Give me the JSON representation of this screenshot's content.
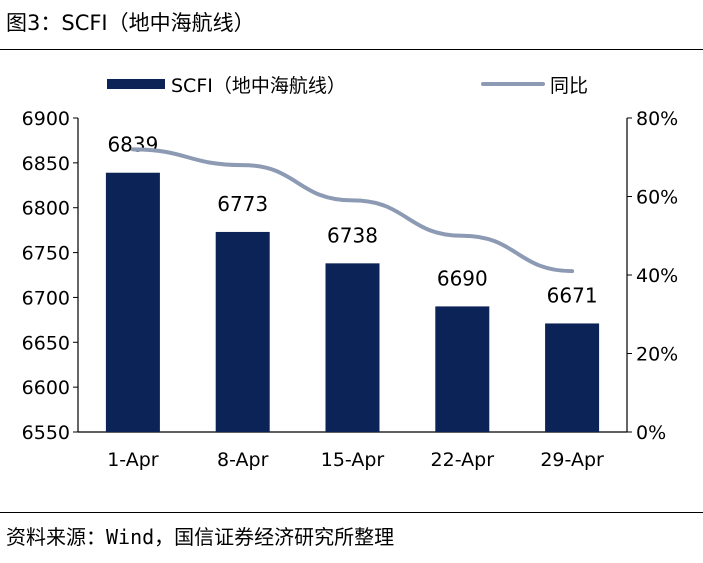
{
  "figure": {
    "title": "图3：SCFI（地中海航线）",
    "source": "资料来源：Wind，国信证券经济研究所整理"
  },
  "colors": {
    "bar": "#0c2357",
    "line": "#8c9ab4",
    "axis": "#000000"
  },
  "chart_data": {
    "type": "bar",
    "categories": [
      "1-Apr",
      "8-Apr",
      "15-Apr",
      "22-Apr",
      "29-Apr"
    ],
    "series": [
      {
        "name": "SCFI（地中海航线）",
        "type": "bar",
        "axis": "left",
        "values": [
          6839,
          6773,
          6738,
          6690,
          6671
        ],
        "labels": [
          "6839",
          "6773",
          "6738",
          "6690",
          "6671"
        ]
      },
      {
        "name": "同比",
        "type": "line",
        "axis": "right",
        "values": [
          0.72,
          0.68,
          0.59,
          0.5,
          0.41
        ]
      }
    ],
    "y_left": {
      "min": 6550,
      "max": 6900,
      "ticks": [
        6550,
        6600,
        6650,
        6700,
        6750,
        6800,
        6850,
        6900
      ]
    },
    "y_right": {
      "min": 0,
      "max": 0.8,
      "ticks": [
        0,
        0.2,
        0.4,
        0.6,
        0.8
      ],
      "tick_labels": [
        "0%",
        "20%",
        "40%",
        "60%",
        "80%"
      ]
    },
    "legend_position": "top",
    "grid": false
  }
}
